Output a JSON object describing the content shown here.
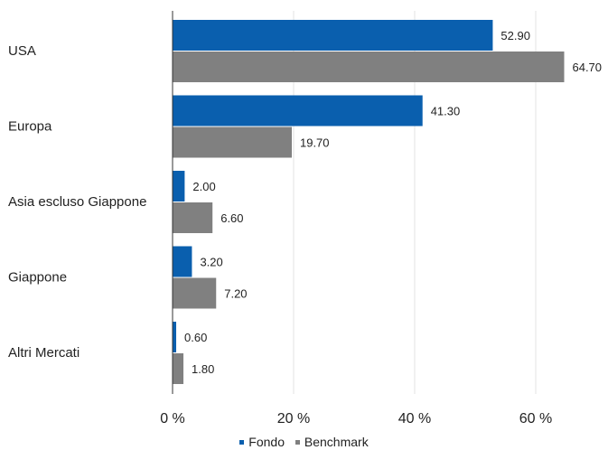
{
  "chart_data": {
    "type": "bar",
    "orientation": "horizontal",
    "categories": [
      "USA",
      "Europa",
      "Asia escluso Giappone",
      "Giappone",
      "Altri Mercati"
    ],
    "series": [
      {
        "name": "Fondo",
        "values": [
          52.9,
          41.3,
          2.0,
          3.2,
          0.6
        ],
        "labels": [
          "52.90",
          "41.30",
          "2.00",
          "3.20",
          "0.60"
        ],
        "color": "#0a5fae"
      },
      {
        "name": "Benchmark",
        "values": [
          64.7,
          19.7,
          6.6,
          7.2,
          1.8
        ],
        "labels": [
          "64.70",
          "19.70",
          "6.60",
          "7.20",
          "1.80"
        ],
        "color": "#808080"
      }
    ],
    "xlim": [
      0,
      70
    ],
    "xticks": [
      0,
      20,
      40,
      60
    ],
    "xtick_labels": [
      "0 %",
      "20 %",
      "40 %",
      "60 %"
    ],
    "grid": true,
    "legend_position": "bottom"
  }
}
